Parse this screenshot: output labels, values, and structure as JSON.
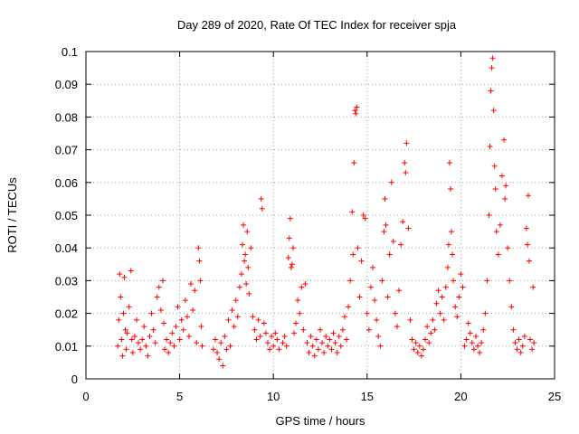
{
  "chart_data": {
    "type": "scatter",
    "title": "Day 289 of 2020, Rate Of TEC Index for receiver spja",
    "xlabel": "GPS time / hours",
    "ylabel": "ROTI / TECUs",
    "xlim": [
      0,
      25
    ],
    "ylim": [
      0,
      0.1
    ],
    "xticks": [
      0,
      5,
      10,
      15,
      20,
      25
    ],
    "yticks": [
      0,
      0.01,
      0.02,
      0.03,
      0.04,
      0.05,
      0.06,
      0.07,
      0.08,
      0.09,
      0.1
    ],
    "xtick_labels": [
      "0",
      "5",
      "10",
      "15",
      "20",
      "25"
    ],
    "ytick_labels": [
      "0",
      "0.01",
      "0.02",
      "0.03",
      "0.04",
      "0.05",
      "0.06",
      "0.07",
      "0.08",
      "0.09",
      "0.1"
    ],
    "grid": true,
    "marker": "+",
    "marker_color": "#ff0000",
    "points": [
      [
        1.7,
        0.01
      ],
      [
        1.75,
        0.018
      ],
      [
        1.8,
        0.032
      ],
      [
        1.85,
        0.025
      ],
      [
        1.9,
        0.012
      ],
      [
        1.95,
        0.007
      ],
      [
        2.0,
        0.02
      ],
      [
        2.05,
        0.031
      ],
      [
        2.1,
        0.015
      ],
      [
        2.15,
        0.009
      ],
      [
        2.2,
        0.014
      ],
      [
        2.3,
        0.022
      ],
      [
        2.4,
        0.033
      ],
      [
        2.45,
        0.012
      ],
      [
        2.5,
        0.008
      ],
      [
        2.6,
        0.013
      ],
      [
        2.7,
        0.018
      ],
      [
        2.8,
        0.011
      ],
      [
        2.9,
        0.009
      ],
      [
        3.0,
        0.012
      ],
      [
        3.1,
        0.016
      ],
      [
        3.2,
        0.01
      ],
      [
        3.3,
        0.007
      ],
      [
        3.4,
        0.013
      ],
      [
        3.5,
        0.02
      ],
      [
        3.6,
        0.015
      ],
      [
        3.7,
        0.011
      ],
      [
        3.8,
        0.025
      ],
      [
        3.9,
        0.028
      ],
      [
        4.0,
        0.021
      ],
      [
        4.1,
        0.03
      ],
      [
        4.15,
        0.017
      ],
      [
        4.2,
        0.009
      ],
      [
        4.3,
        0.012
      ],
      [
        4.4,
        0.008
      ],
      [
        4.5,
        0.011
      ],
      [
        4.6,
        0.014
      ],
      [
        4.7,
        0.01
      ],
      [
        4.8,
        0.016
      ],
      [
        4.9,
        0.022
      ],
      [
        5.0,
        0.012
      ],
      [
        5.1,
        0.018
      ],
      [
        5.2,
        0.015
      ],
      [
        5.3,
        0.024
      ],
      [
        5.4,
        0.019
      ],
      [
        5.5,
        0.013
      ],
      [
        5.6,
        0.029
      ],
      [
        5.7,
        0.021
      ],
      [
        5.8,
        0.027
      ],
      [
        5.9,
        0.011
      ],
      [
        6.0,
        0.04
      ],
      [
        6.05,
        0.036
      ],
      [
        6.1,
        0.03
      ],
      [
        6.15,
        0.016
      ],
      [
        6.2,
        0.01
      ],
      [
        6.8,
        0.009
      ],
      [
        6.9,
        0.012
      ],
      [
        7.0,
        0.008
      ],
      [
        7.1,
        0.006
      ],
      [
        7.2,
        0.011
      ],
      [
        7.3,
        0.004
      ],
      [
        7.4,
        0.013
      ],
      [
        7.5,
        0.009
      ],
      [
        7.6,
        0.018
      ],
      [
        7.7,
        0.01
      ],
      [
        7.8,
        0.021
      ],
      [
        7.9,
        0.016
      ],
      [
        8.0,
        0.024
      ],
      [
        8.1,
        0.019
      ],
      [
        8.2,
        0.028
      ],
      [
        8.3,
        0.032
      ],
      [
        8.35,
        0.041
      ],
      [
        8.4,
        0.047
      ],
      [
        8.45,
        0.036
      ],
      [
        8.5,
        0.038
      ],
      [
        8.55,
        0.029
      ],
      [
        8.6,
        0.045
      ],
      [
        8.65,
        0.034
      ],
      [
        8.7,
        0.026
      ],
      [
        8.8,
        0.04
      ],
      [
        8.9,
        0.019
      ],
      [
        9.0,
        0.015
      ],
      [
        9.1,
        0.012
      ],
      [
        9.2,
        0.018
      ],
      [
        9.3,
        0.013
      ],
      [
        9.35,
        0.055
      ],
      [
        9.4,
        0.052
      ],
      [
        9.5,
        0.017
      ],
      [
        9.6,
        0.014
      ],
      [
        9.7,
        0.011
      ],
      [
        9.8,
        0.009
      ],
      [
        9.9,
        0.013
      ],
      [
        10.0,
        0.01
      ],
      [
        10.1,
        0.014
      ],
      [
        10.2,
        0.012
      ],
      [
        10.3,
        0.009
      ],
      [
        10.5,
        0.011
      ],
      [
        10.6,
        0.013
      ],
      [
        10.7,
        0.01
      ],
      [
        10.8,
        0.037
      ],
      [
        10.85,
        0.043
      ],
      [
        10.9,
        0.049
      ],
      [
        10.95,
        0.034
      ],
      [
        11.0,
        0.035
      ],
      [
        11.05,
        0.04
      ],
      [
        11.1,
        0.014
      ],
      [
        11.2,
        0.017
      ],
      [
        11.3,
        0.024
      ],
      [
        11.4,
        0.02
      ],
      [
        11.5,
        0.028
      ],
      [
        11.6,
        0.015
      ],
      [
        11.7,
        0.029
      ],
      [
        11.8,
        0.011
      ],
      [
        11.9,
        0.008
      ],
      [
        12.0,
        0.013
      ],
      [
        12.1,
        0.01
      ],
      [
        12.2,
        0.007
      ],
      [
        12.3,
        0.012
      ],
      [
        12.4,
        0.009
      ],
      [
        12.5,
        0.015
      ],
      [
        12.6,
        0.011
      ],
      [
        12.7,
        0.008
      ],
      [
        12.8,
        0.013
      ],
      [
        12.9,
        0.01
      ],
      [
        13.0,
        0.012
      ],
      [
        13.1,
        0.009
      ],
      [
        13.2,
        0.014
      ],
      [
        13.3,
        0.011
      ],
      [
        13.4,
        0.008
      ],
      [
        13.5,
        0.013
      ],
      [
        13.6,
        0.01
      ],
      [
        13.7,
        0.015
      ],
      [
        13.8,
        0.019
      ],
      [
        13.9,
        0.012
      ],
      [
        14.0,
        0.022
      ],
      [
        14.1,
        0.03
      ],
      [
        14.2,
        0.051
      ],
      [
        14.25,
        0.038
      ],
      [
        14.3,
        0.066
      ],
      [
        14.35,
        0.082
      ],
      [
        14.4,
        0.081
      ],
      [
        14.45,
        0.083
      ],
      [
        14.5,
        0.04
      ],
      [
        14.6,
        0.025
      ],
      [
        14.7,
        0.036
      ],
      [
        14.8,
        0.05
      ],
      [
        14.9,
        0.049
      ],
      [
        15.0,
        0.02
      ],
      [
        15.1,
        0.015
      ],
      [
        15.2,
        0.028
      ],
      [
        15.3,
        0.034
      ],
      [
        15.4,
        0.024
      ],
      [
        15.5,
        0.018
      ],
      [
        15.6,
        0.013
      ],
      [
        15.7,
        0.01
      ],
      [
        15.8,
        0.03
      ],
      [
        15.9,
        0.045
      ],
      [
        15.95,
        0.055
      ],
      [
        16.0,
        0.047
      ],
      [
        16.1,
        0.025
      ],
      [
        16.2,
        0.038
      ],
      [
        16.3,
        0.06
      ],
      [
        16.4,
        0.042
      ],
      [
        16.5,
        0.02
      ],
      [
        16.6,
        0.016
      ],
      [
        16.7,
        0.027
      ],
      [
        16.8,
        0.041
      ],
      [
        16.9,
        0.048
      ],
      [
        17.0,
        0.066
      ],
      [
        17.05,
        0.063
      ],
      [
        17.1,
        0.072
      ],
      [
        17.2,
        0.046
      ],
      [
        17.3,
        0.018
      ],
      [
        17.4,
        0.012
      ],
      [
        17.5,
        0.009
      ],
      [
        17.6,
        0.011
      ],
      [
        17.7,
        0.008
      ],
      [
        17.8,
        0.01
      ],
      [
        17.9,
        0.007
      ],
      [
        18.0,
        0.009
      ],
      [
        18.1,
        0.012
      ],
      [
        18.2,
        0.016
      ],
      [
        18.3,
        0.011
      ],
      [
        18.4,
        0.014
      ],
      [
        18.5,
        0.018
      ],
      [
        18.6,
        0.015
      ],
      [
        18.7,
        0.023
      ],
      [
        18.8,
        0.027
      ],
      [
        18.9,
        0.02
      ],
      [
        19.0,
        0.025
      ],
      [
        19.1,
        0.018
      ],
      [
        19.2,
        0.028
      ],
      [
        19.3,
        0.034
      ],
      [
        19.35,
        0.041
      ],
      [
        19.4,
        0.066
      ],
      [
        19.45,
        0.058
      ],
      [
        19.5,
        0.045
      ],
      [
        19.55,
        0.038
      ],
      [
        19.6,
        0.03
      ],
      [
        19.7,
        0.022
      ],
      [
        19.8,
        0.019
      ],
      [
        19.9,
        0.025
      ],
      [
        20.0,
        0.032
      ],
      [
        20.1,
        0.028
      ],
      [
        20.2,
        0.01
      ],
      [
        20.3,
        0.012
      ],
      [
        20.4,
        0.017
      ],
      [
        20.5,
        0.014
      ],
      [
        20.6,
        0.011
      ],
      [
        20.7,
        0.009
      ],
      [
        20.8,
        0.013
      ],
      [
        20.9,
        0.01
      ],
      [
        21.0,
        0.008
      ],
      [
        21.1,
        0.011
      ],
      [
        21.2,
        0.015
      ],
      [
        21.3,
        0.02
      ],
      [
        21.4,
        0.03
      ],
      [
        21.5,
        0.05
      ],
      [
        21.55,
        0.071
      ],
      [
        21.6,
        0.088
      ],
      [
        21.65,
        0.095
      ],
      [
        21.7,
        0.098
      ],
      [
        21.75,
        0.082
      ],
      [
        21.8,
        0.065
      ],
      [
        21.85,
        0.058
      ],
      [
        21.9,
        0.045
      ],
      [
        22.0,
        0.038
      ],
      [
        22.1,
        0.047
      ],
      [
        22.2,
        0.062
      ],
      [
        22.3,
        0.073
      ],
      [
        22.35,
        0.055
      ],
      [
        22.4,
        0.059
      ],
      [
        22.5,
        0.04
      ],
      [
        22.6,
        0.03
      ],
      [
        22.7,
        0.022
      ],
      [
        22.8,
        0.015
      ],
      [
        22.9,
        0.011
      ],
      [
        23.0,
        0.009
      ],
      [
        23.1,
        0.012
      ],
      [
        23.2,
        0.008
      ],
      [
        23.3,
        0.01
      ],
      [
        23.4,
        0.013
      ],
      [
        23.5,
        0.046
      ],
      [
        23.55,
        0.041
      ],
      [
        23.6,
        0.056
      ],
      [
        23.65,
        0.036
      ],
      [
        23.7,
        0.012
      ],
      [
        23.8,
        0.009
      ],
      [
        23.85,
        0.028
      ],
      [
        23.9,
        0.011
      ]
    ]
  }
}
